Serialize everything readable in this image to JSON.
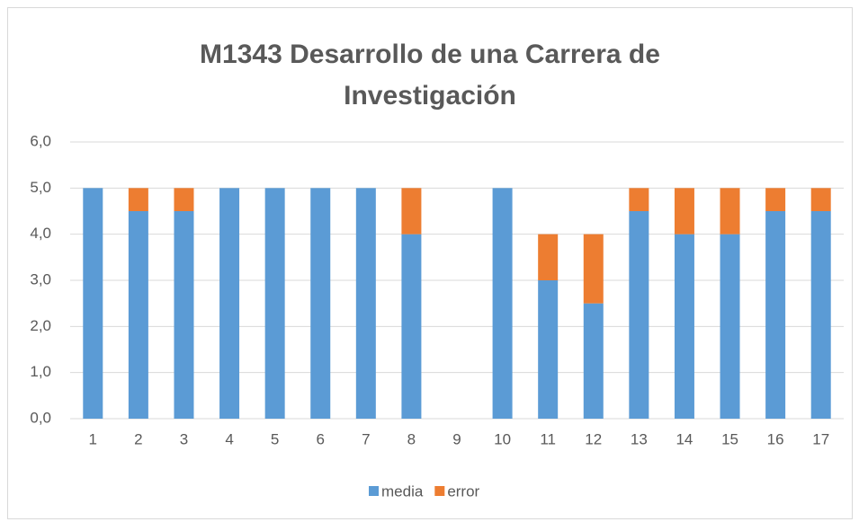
{
  "chart_data": {
    "type": "stacked_bar",
    "title": [
      "M1343 Desarrollo de una Carrera de",
      "Investigación"
    ],
    "categories": [
      "1",
      "2",
      "3",
      "4",
      "5",
      "6",
      "7",
      "8",
      "9",
      "10",
      "11",
      "12",
      "13",
      "14",
      "15",
      "16",
      "17"
    ],
    "series": [
      {
        "name": "media",
        "color": "#5b9bd5",
        "values": [
          5,
          4.5,
          4.5,
          5,
          5,
          5,
          5,
          4,
          0,
          5,
          3,
          2.5,
          4.5,
          4,
          4,
          4.5,
          4.5
        ]
      },
      {
        "name": "error",
        "color": "#ed7d31",
        "values": [
          0,
          0.5,
          0.5,
          0,
          0,
          0,
          0,
          1,
          0,
          0,
          1,
          1.5,
          0.5,
          1,
          1,
          0.5,
          0.5
        ]
      }
    ],
    "ylim": [
      0,
      6
    ],
    "yticks": [
      {
        "value": 0,
        "label": "0,0"
      },
      {
        "value": 1,
        "label": "1,0"
      },
      {
        "value": 2,
        "label": "2,0"
      },
      {
        "value": 3,
        "label": "3,0"
      },
      {
        "value": 4,
        "label": "4,0"
      },
      {
        "value": 5,
        "label": "5,0"
      },
      {
        "value": 6,
        "label": "6,0"
      }
    ],
    "grid": true,
    "legend": "bottom"
  }
}
